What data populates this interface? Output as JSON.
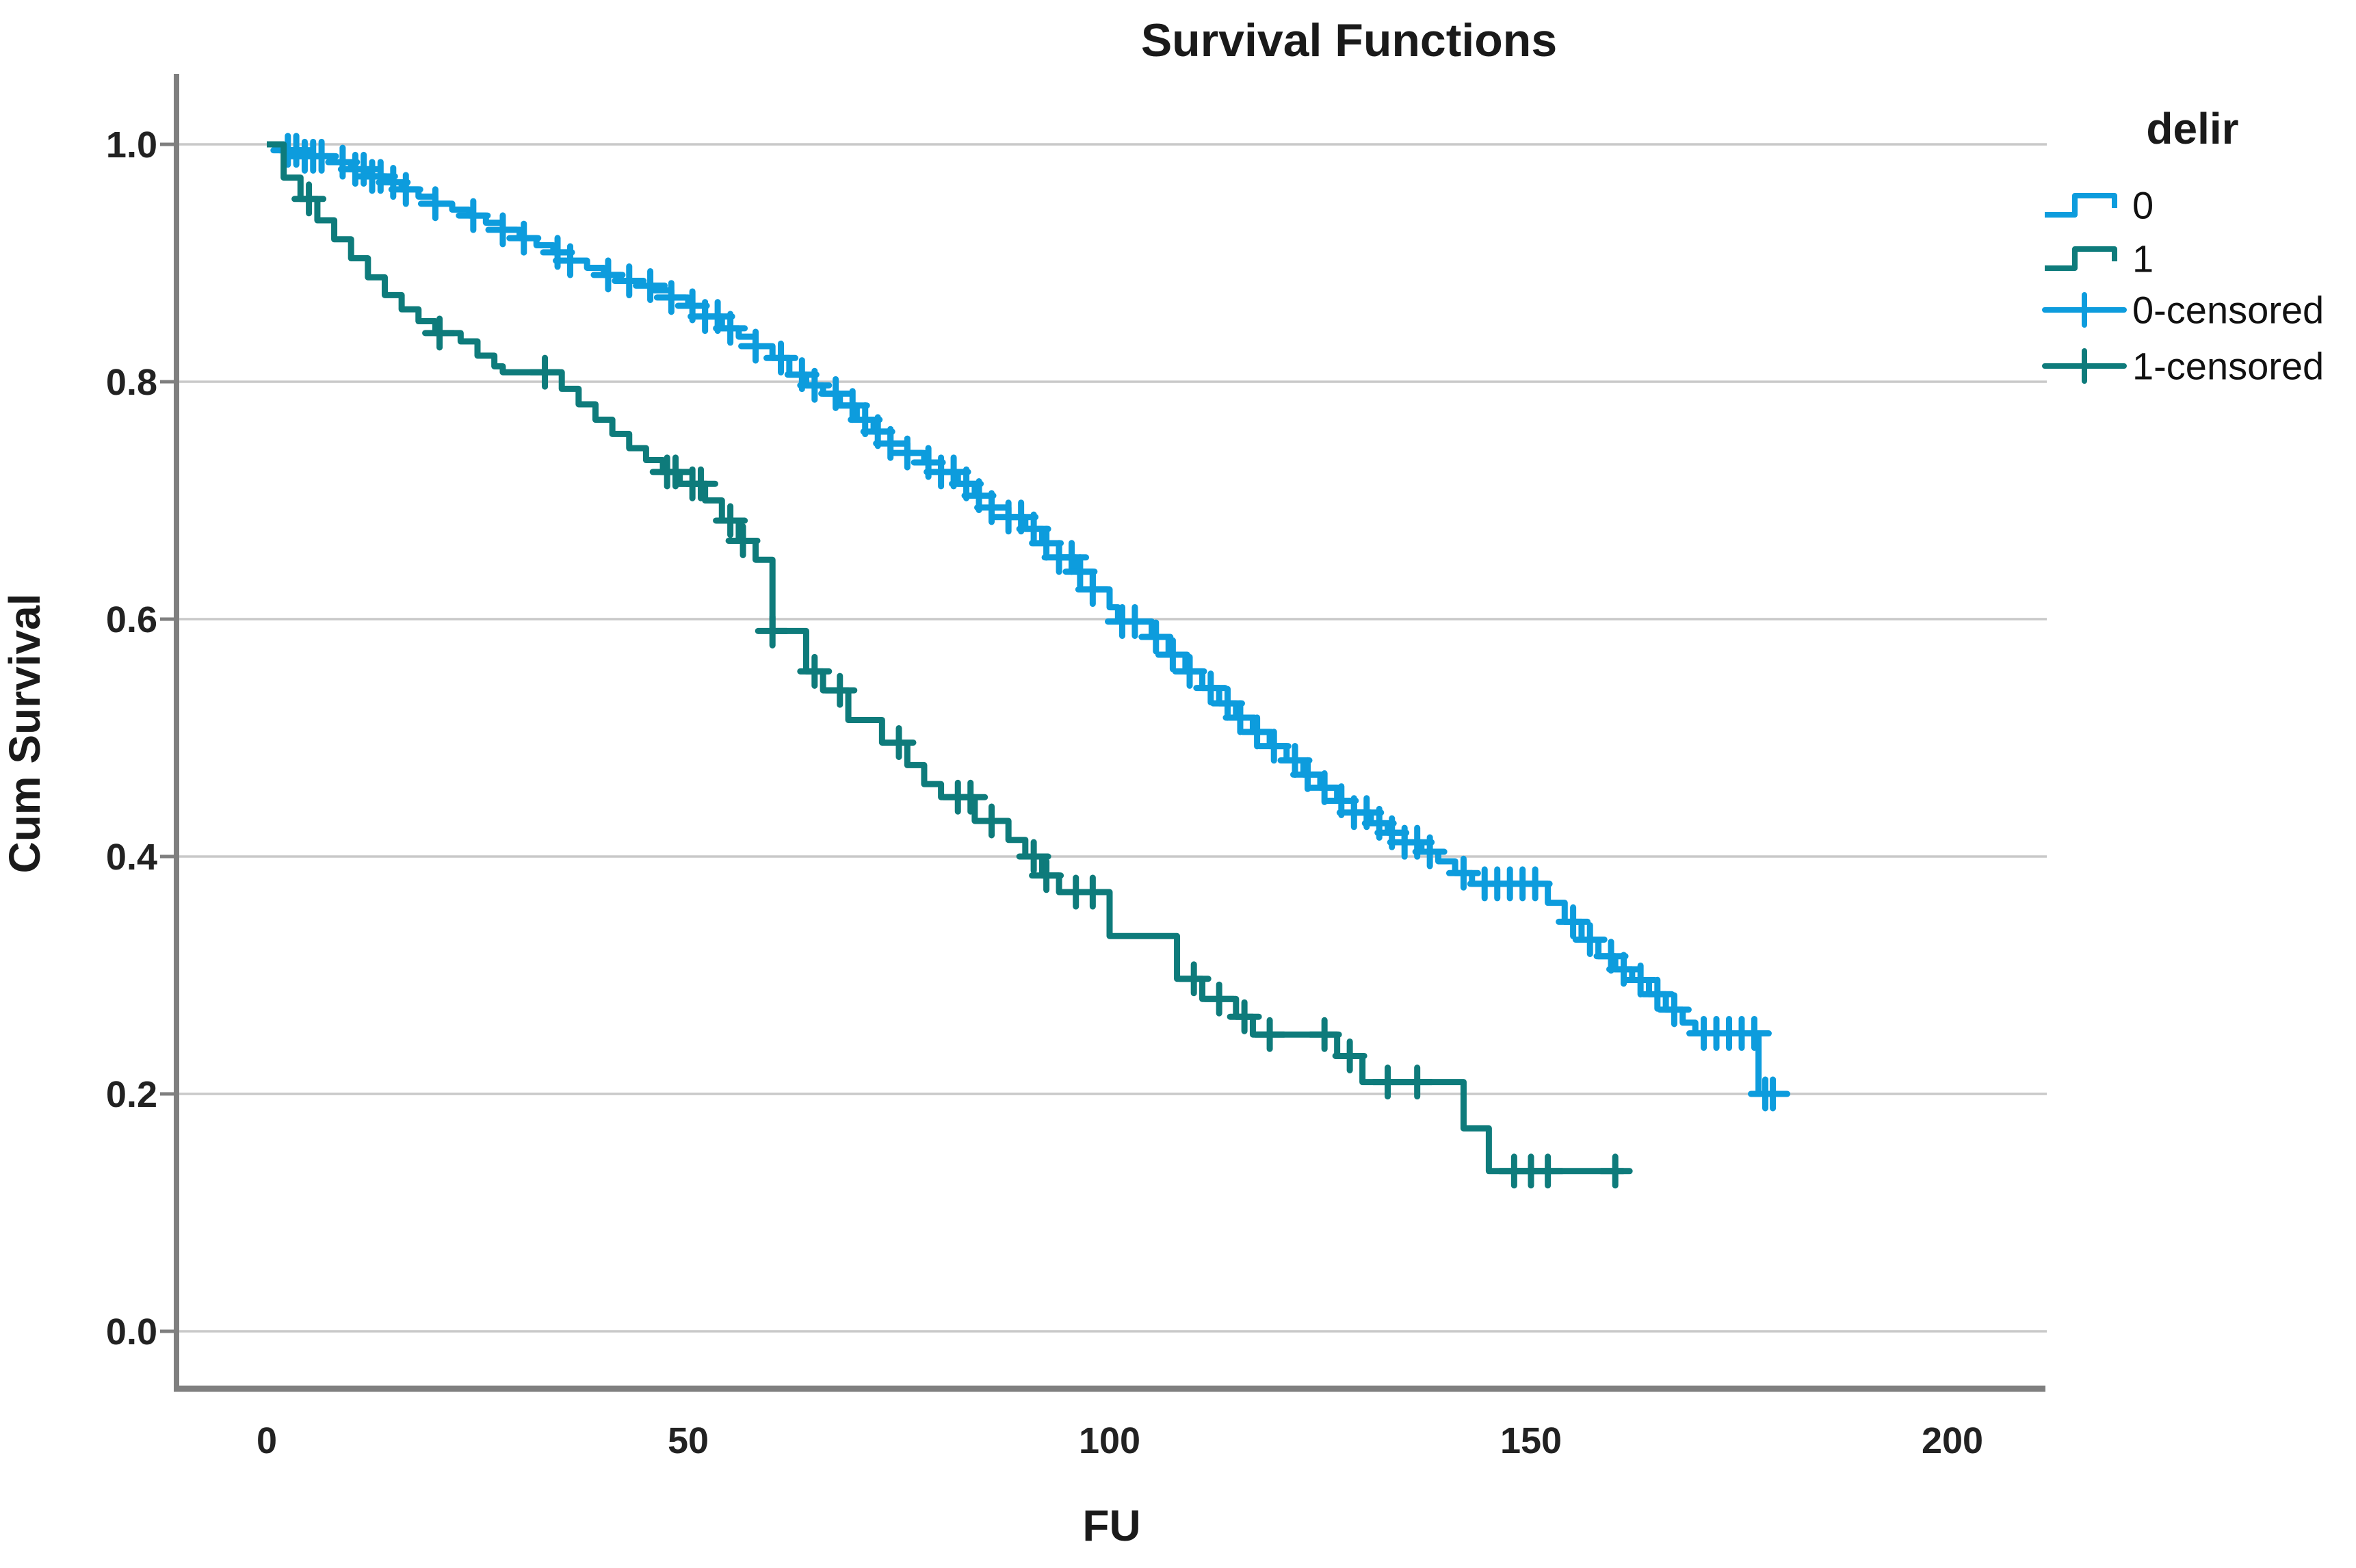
{
  "figure": {
    "title": "Survival Functions"
  },
  "axes": {
    "x_label": "FU",
    "y_label": "Cum Survival",
    "x_ticks": [
      "0",
      "50",
      "100",
      "150",
      "200"
    ],
    "y_ticks": [
      "1.0",
      "0.8",
      "0.6",
      "0.4",
      "0.2",
      "0.0"
    ]
  },
  "legend": {
    "title": "delir",
    "items": [
      {
        "label": "0",
        "type": "step-line",
        "color": "#0d9cdd"
      },
      {
        "label": "1",
        "type": "step-line",
        "color": "#0e7b7b"
      },
      {
        "label": "0-censored",
        "type": "censor-mark",
        "color": "#0d9cdd"
      },
      {
        "label": "1-censored",
        "type": "censor-mark",
        "color": "#0e7b7b"
      }
    ]
  },
  "chart_data": {
    "type": "line",
    "subtype": "kaplan-meier-step",
    "title": "Survival Functions",
    "xlabel": "FU",
    "ylabel": "Cum Survival",
    "xlim": [
      -10.7,
      210.9
    ],
    "ylim": [
      -0.048,
      1.058
    ],
    "x_tick_values": [
      0,
      50,
      100,
      150,
      200
    ],
    "y_gridline_values": [
      0.0,
      0.2,
      0.4,
      0.6,
      0.8,
      1.0
    ],
    "grid": "horizontal-only",
    "legend_position": "outside-top-right",
    "style": {
      "grid_color": "#c9c9c9",
      "axis_color": "#7f7f7f",
      "background": "#ffffff",
      "curve_width": 9,
      "censor_halfsize": 21
    },
    "series": [
      {
        "name": "0",
        "color": "#0d9cdd",
        "steps": [
          [
            0,
            1.0
          ],
          [
            1.5,
            0.995
          ],
          [
            4,
            0.99
          ],
          [
            8,
            0.985
          ],
          [
            10,
            0.979
          ],
          [
            12,
            0.973
          ],
          [
            14,
            0.968
          ],
          [
            16,
            0.962
          ],
          [
            18,
            0.956
          ],
          [
            20,
            0.95
          ],
          [
            22,
            0.945
          ],
          [
            24,
            0.94
          ],
          [
            26,
            0.934
          ],
          [
            28,
            0.928
          ],
          [
            30,
            0.921
          ],
          [
            32,
            0.915
          ],
          [
            34,
            0.909
          ],
          [
            36,
            0.902
          ],
          [
            38,
            0.896
          ],
          [
            40,
            0.89
          ],
          [
            42,
            0.885
          ],
          [
            44,
            0.881
          ],
          [
            46,
            0.877
          ],
          [
            48,
            0.871
          ],
          [
            50,
            0.864
          ],
          [
            52,
            0.855
          ],
          [
            54,
            0.845
          ],
          [
            56,
            0.838
          ],
          [
            58,
            0.83
          ],
          [
            60,
            0.82
          ],
          [
            62,
            0.806
          ],
          [
            64,
            0.797
          ],
          [
            66,
            0.79
          ],
          [
            68,
            0.78
          ],
          [
            70,
            0.768
          ],
          [
            72,
            0.758
          ],
          [
            74,
            0.748
          ],
          [
            76,
            0.74
          ],
          [
            78,
            0.732
          ],
          [
            80,
            0.724
          ],
          [
            82,
            0.714
          ],
          [
            84,
            0.704
          ],
          [
            86,
            0.694
          ],
          [
            88,
            0.686
          ],
          [
            90,
            0.676
          ],
          [
            92,
            0.664
          ],
          [
            94,
            0.652
          ],
          [
            96,
            0.64
          ],
          [
            98,
            0.625
          ],
          [
            100,
            0.61
          ],
          [
            101,
            0.598
          ],
          [
            105,
            0.585
          ],
          [
            107,
            0.57
          ],
          [
            109,
            0.556
          ],
          [
            111,
            0.542
          ],
          [
            113,
            0.529
          ],
          [
            115,
            0.517
          ],
          [
            117,
            0.505
          ],
          [
            119,
            0.493
          ],
          [
            121,
            0.481
          ],
          [
            123,
            0.469
          ],
          [
            125,
            0.458
          ],
          [
            127,
            0.447
          ],
          [
            129,
            0.437
          ],
          [
            131,
            0.428
          ],
          [
            133,
            0.42
          ],
          [
            135,
            0.412
          ],
          [
            137,
            0.404
          ],
          [
            139,
            0.396
          ],
          [
            141,
            0.386
          ],
          [
            143,
            0.377
          ],
          [
            152,
            0.361
          ],
          [
            154,
            0.345
          ],
          [
            156,
            0.33
          ],
          [
            158,
            0.316
          ],
          [
            160,
            0.305
          ],
          [
            162,
            0.296
          ],
          [
            164,
            0.284
          ],
          [
            166,
            0.271
          ],
          [
            168,
            0.26
          ],
          [
            169.5,
            0.251
          ],
          [
            177,
            0.2
          ]
        ],
        "end_t": 179.5,
        "censor_t": [
          2.5,
          3.5,
          4.5,
          5.5,
          6.5,
          9,
          10.5,
          11.5,
          12.5,
          13.5,
          15,
          16.5,
          20,
          24.5,
          28,
          30.5,
          34.5,
          36,
          40.5,
          43,
          45.5,
          48,
          50.5,
          52,
          53.5,
          55,
          58,
          61,
          63.5,
          65,
          67.5,
          69.5,
          71,
          72.5,
          74,
          76,
          78.5,
          80,
          81.5,
          83,
          84.5,
          86,
          88,
          89.5,
          91,
          92.5,
          94,
          95.5,
          96.5,
          98,
          101.5,
          103,
          105.5,
          107.5,
          109.5,
          112,
          114,
          115.5,
          117.5,
          119.5,
          122,
          123.5,
          125.5,
          127.5,
          129,
          130.5,
          132,
          133.5,
          135,
          136.5,
          138,
          142,
          144.5,
          146,
          147.5,
          149,
          150.5,
          155,
          157,
          159.5,
          161,
          163,
          165,
          167,
          170.5,
          172,
          173.5,
          175,
          176.5,
          177.8,
          178.7
        ]
      },
      {
        "name": "1",
        "color": "#0e7b7b",
        "steps": [
          [
            0,
            1.0
          ],
          [
            2,
            0.972
          ],
          [
            4,
            0.954
          ],
          [
            6,
            0.936
          ],
          [
            8,
            0.92
          ],
          [
            10,
            0.904
          ],
          [
            12,
            0.888
          ],
          [
            14,
            0.873
          ],
          [
            16,
            0.861
          ],
          [
            18,
            0.851
          ],
          [
            20,
            0.841
          ],
          [
            23,
            0.834
          ],
          [
            25,
            0.822
          ],
          [
            27,
            0.813
          ],
          [
            28,
            0.808
          ],
          [
            35,
            0.794
          ],
          [
            37,
            0.781
          ],
          [
            39,
            0.768
          ],
          [
            41,
            0.756
          ],
          [
            43,
            0.744
          ],
          [
            45,
            0.734
          ],
          [
            47,
            0.724
          ],
          [
            49,
            0.714
          ],
          [
            52,
            0.7
          ],
          [
            54,
            0.683
          ],
          [
            56,
            0.666
          ],
          [
            58,
            0.65
          ],
          [
            60,
            0.59
          ],
          [
            64,
            0.556
          ],
          [
            66,
            0.54
          ],
          [
            69,
            0.515
          ],
          [
            73,
            0.496
          ],
          [
            76,
            0.477
          ],
          [
            78,
            0.461
          ],
          [
            80,
            0.45
          ],
          [
            84,
            0.43
          ],
          [
            88,
            0.414
          ],
          [
            90,
            0.4
          ],
          [
            92,
            0.384
          ],
          [
            94,
            0.37
          ],
          [
            100,
            0.333
          ],
          [
            108,
            0.297
          ],
          [
            111,
            0.28
          ],
          [
            115,
            0.265
          ],
          [
            117,
            0.25
          ],
          [
            127,
            0.232
          ],
          [
            130,
            0.21
          ],
          [
            142,
            0.171
          ],
          [
            145,
            0.135
          ]
        ],
        "end_t": 161,
        "censor_t": [
          5,
          20.5,
          33,
          47.5,
          48.5,
          50.5,
          51.5,
          55,
          56.5,
          60,
          65,
          68,
          75,
          82,
          83.5,
          86,
          91,
          92.5,
          96,
          98,
          110,
          113,
          116,
          119,
          125.5,
          128.5,
          133,
          136.5,
          148,
          150,
          152,
          160
        ]
      }
    ]
  }
}
